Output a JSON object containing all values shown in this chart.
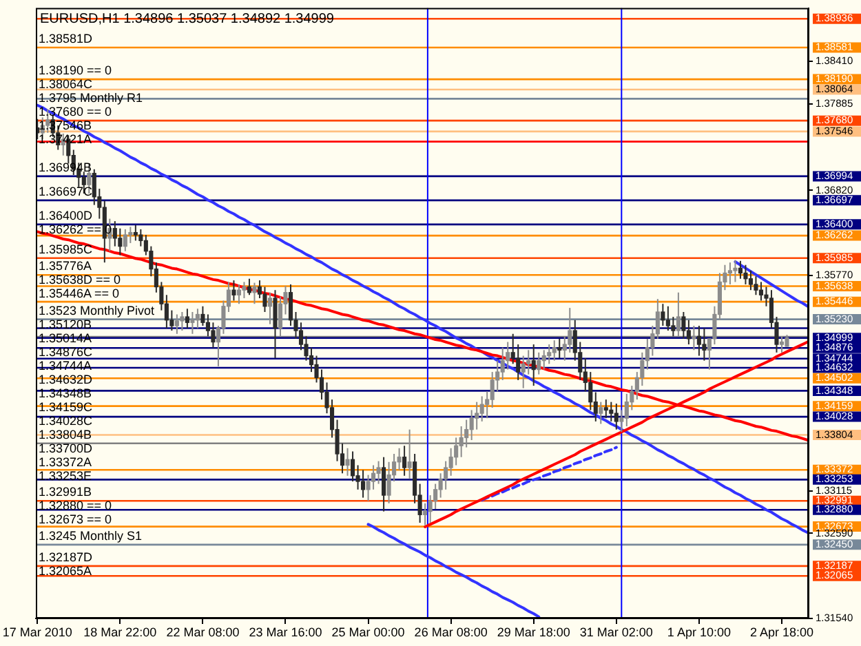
{
  "chart_data": {
    "type": "candlestick",
    "title": "EURUSD,H1 1.34896 1.35037 1.34892 1.34999",
    "categories": [
      "17 Mar 2010",
      null,
      null,
      null,
      null,
      null,
      null,
      null,
      null,
      null,
      null,
      null,
      null,
      null,
      null,
      null,
      "18 Mar 22:00",
      null,
      null,
      null,
      null,
      null,
      null,
      null,
      null,
      null,
      null,
      null,
      null,
      null,
      null,
      null,
      "22 Mar 08:00",
      null,
      null,
      null,
      null,
      null,
      null,
      null,
      null,
      null,
      null,
      null,
      null,
      null,
      null,
      null,
      "23 Mar 16:00",
      null,
      null,
      null,
      null,
      null,
      null,
      null,
      null,
      null,
      null,
      null,
      null,
      null,
      null,
      null,
      "25 Mar 00:00",
      null,
      null,
      null,
      null,
      null,
      null,
      null,
      null,
      null,
      null,
      null,
      null,
      null,
      null,
      null,
      "26 Mar 08:00",
      null,
      null,
      null,
      null,
      null,
      null,
      null,
      null,
      null,
      null,
      null,
      null,
      null,
      null,
      null,
      "29 Mar 18:00",
      null,
      null,
      null,
      null,
      null,
      null,
      null,
      null,
      null,
      null,
      null,
      null,
      null,
      null,
      null,
      "31 Mar 02:00",
      null,
      null,
      null,
      null,
      null,
      null,
      null,
      null,
      null,
      null,
      null,
      null,
      null,
      null,
      null,
      "1 Apr 10:00",
      null,
      null,
      null,
      null,
      null,
      null,
      null,
      null,
      null,
      null,
      null,
      null,
      null,
      null,
      null,
      "2 Apr 18:00",
      null,
      null,
      null,
      null,
      null
    ],
    "ohlc": [
      [
        1.3759,
        1.377,
        1.3745,
        1.3753
      ],
      [
        1.3753,
        1.3772,
        1.3745,
        1.3762
      ],
      [
        1.3762,
        1.3782,
        1.3753,
        1.3769
      ],
      [
        1.3769,
        1.3775,
        1.3748,
        1.3753
      ],
      [
        1.3753,
        1.3762,
        1.3732,
        1.3738
      ],
      [
        1.3738,
        1.3752,
        1.3725,
        1.3745
      ],
      [
        1.3745,
        1.375,
        1.3715,
        1.3725
      ],
      [
        1.3725,
        1.3732,
        1.3701,
        1.3708
      ],
      [
        1.3708,
        1.3716,
        1.3686,
        1.3698
      ],
      [
        1.3698,
        1.3705,
        1.3678,
        1.3689
      ],
      [
        1.3689,
        1.3715,
        1.3678,
        1.3703
      ],
      [
        1.3703,
        1.3708,
        1.3664,
        1.3674
      ],
      [
        1.3674,
        1.3684,
        1.3647,
        1.3661
      ],
      [
        1.3661,
        1.3669,
        1.3593,
        1.3623
      ],
      [
        1.3623,
        1.3647,
        1.3607,
        1.3635
      ],
      [
        1.3635,
        1.3644,
        1.3613,
        1.3623
      ],
      [
        1.3623,
        1.3635,
        1.3602,
        1.3613
      ],
      [
        1.3613,
        1.3634,
        1.3607,
        1.3627
      ],
      [
        1.3627,
        1.3637,
        1.3617,
        1.363
      ],
      [
        1.363,
        1.3639,
        1.362,
        1.3627
      ],
      [
        1.3627,
        1.3634,
        1.3613,
        1.362
      ],
      [
        1.362,
        1.3627,
        1.3602,
        1.3607
      ],
      [
        1.3607,
        1.3613,
        1.3576,
        1.3585
      ],
      [
        1.3585,
        1.3593,
        1.3556,
        1.3563
      ],
      [
        1.3563,
        1.3569,
        1.3534,
        1.3542
      ],
      [
        1.3542,
        1.3553,
        1.3512,
        1.3522
      ],
      [
        1.3522,
        1.3534,
        1.3509,
        1.3515
      ],
      [
        1.3515,
        1.3529,
        1.3505,
        1.3521
      ],
      [
        1.3521,
        1.3532,
        1.3509,
        1.3526
      ],
      [
        1.3526,
        1.3536,
        1.3512,
        1.3519
      ],
      [
        1.3519,
        1.3532,
        1.3505,
        1.3522
      ],
      [
        1.3522,
        1.3536,
        1.3512,
        1.3529
      ],
      [
        1.3529,
        1.3539,
        1.3515,
        1.3519
      ],
      [
        1.3519,
        1.3529,
        1.3502,
        1.3509
      ],
      [
        1.3509,
        1.3519,
        1.3488,
        1.3495
      ],
      [
        1.3495,
        1.3515,
        1.3465,
        1.3512
      ],
      [
        1.3512,
        1.3546,
        1.3505,
        1.3539
      ],
      [
        1.3539,
        1.3569,
        1.3532,
        1.3559
      ],
      [
        1.3559,
        1.3571,
        1.3546,
        1.3553
      ],
      [
        1.3553,
        1.3566,
        1.3542,
        1.3559
      ],
      [
        1.3559,
        1.3569,
        1.3549,
        1.3563
      ],
      [
        1.3563,
        1.3573,
        1.3553,
        1.3556
      ],
      [
        1.3556,
        1.3568,
        1.3542,
        1.3563
      ],
      [
        1.3563,
        1.3571,
        1.3549,
        1.3554
      ],
      [
        1.3554,
        1.3563,
        1.3532,
        1.3539
      ],
      [
        1.3539,
        1.3556,
        1.3517,
        1.3549
      ],
      [
        1.3549,
        1.3559,
        1.3475,
        1.3512
      ],
      [
        1.3512,
        1.3551,
        1.3502,
        1.3542
      ],
      [
        1.3542,
        1.3564,
        1.3529,
        1.3556
      ],
      [
        1.3556,
        1.3566,
        1.3515,
        1.3522
      ],
      [
        1.3522,
        1.3532,
        1.3499,
        1.3509
      ],
      [
        1.3509,
        1.3519,
        1.3485,
        1.3492
      ],
      [
        1.3492,
        1.3502,
        1.3472,
        1.3478
      ],
      [
        1.3478,
        1.3488,
        1.3458,
        1.3467
      ],
      [
        1.3467,
        1.3478,
        1.3445,
        1.3451
      ],
      [
        1.3451,
        1.3461,
        1.3424,
        1.3433
      ],
      [
        1.3433,
        1.3445,
        1.3407,
        1.3414
      ],
      [
        1.3414,
        1.3424,
        1.3377,
        1.3387
      ],
      [
        1.3387,
        1.3399,
        1.3348,
        1.3357
      ],
      [
        1.3357,
        1.337,
        1.3333,
        1.3343
      ],
      [
        1.3343,
        1.3364,
        1.333,
        1.335
      ],
      [
        1.335,
        1.336,
        1.3323,
        1.333
      ],
      [
        1.333,
        1.3343,
        1.3313,
        1.3323
      ],
      [
        1.3323,
        1.3337,
        1.3303,
        1.3313
      ],
      [
        1.3313,
        1.3331,
        1.3299,
        1.3323
      ],
      [
        1.3323,
        1.3343,
        1.3313,
        1.3333
      ],
      [
        1.3333,
        1.3348,
        1.332,
        1.334
      ],
      [
        1.334,
        1.3353,
        1.3286,
        1.3306
      ],
      [
        1.3306,
        1.3347,
        1.3296,
        1.3331
      ],
      [
        1.3331,
        1.3357,
        1.3323,
        1.3347
      ],
      [
        1.3347,
        1.3364,
        1.3337,
        1.3353
      ],
      [
        1.3353,
        1.3367,
        1.333,
        1.334
      ],
      [
        1.334,
        1.3387,
        1.3326,
        1.3347
      ],
      [
        1.3347,
        1.3357,
        1.3296,
        1.3306
      ],
      [
        1.3306,
        1.332,
        1.3272,
        1.3282
      ],
      [
        1.3282,
        1.3296,
        1.3269,
        1.3286
      ],
      [
        1.3286,
        1.3306,
        1.3272,
        1.3299
      ],
      [
        1.3299,
        1.332,
        1.3289,
        1.3313
      ],
      [
        1.3313,
        1.3333,
        1.3303,
        1.3326
      ],
      [
        1.3326,
        1.3348,
        1.3313,
        1.334
      ],
      [
        1.334,
        1.3364,
        1.333,
        1.3353
      ],
      [
        1.3353,
        1.3377,
        1.3343,
        1.3367
      ],
      [
        1.3367,
        1.3391,
        1.3353,
        1.3377
      ],
      [
        1.3377,
        1.3399,
        1.3365,
        1.3387
      ],
      [
        1.3387,
        1.3411,
        1.3374,
        1.3401
      ],
      [
        1.3401,
        1.3421,
        1.3387,
        1.3407
      ],
      [
        1.3407,
        1.3428,
        1.3397,
        1.3418
      ],
      [
        1.3418,
        1.3434,
        1.3401,
        1.3424
      ],
      [
        1.3424,
        1.3458,
        1.3414,
        1.3448
      ],
      [
        1.3448,
        1.3472,
        1.3434,
        1.3458
      ],
      [
        1.3458,
        1.3488,
        1.3448,
        1.3472
      ],
      [
        1.3472,
        1.3495,
        1.3461,
        1.3482
      ],
      [
        1.3482,
        1.3505,
        1.3468,
        1.3475
      ],
      [
        1.3475,
        1.3492,
        1.3448,
        1.3458
      ],
      [
        1.3458,
        1.3478,
        1.3438,
        1.3468
      ],
      [
        1.3468,
        1.3485,
        1.3455,
        1.3472
      ],
      [
        1.3472,
        1.3492,
        1.3441,
        1.3461
      ],
      [
        1.3461,
        1.3482,
        1.3455,
        1.3472
      ],
      [
        1.3472,
        1.3485,
        1.3461,
        1.3478
      ],
      [
        1.3478,
        1.3492,
        1.3468,
        1.3482
      ],
      [
        1.3482,
        1.3497,
        1.3472,
        1.3488
      ],
      [
        1.3488,
        1.3499,
        1.3475,
        1.3485
      ],
      [
        1.3485,
        1.3502,
        1.3472,
        1.3492
      ],
      [
        1.3492,
        1.3537,
        1.3482,
        1.3509
      ],
      [
        1.3509,
        1.3522,
        1.3472,
        1.3482
      ],
      [
        1.3482,
        1.3495,
        1.3448,
        1.3458
      ],
      [
        1.3458,
        1.3475,
        1.3434,
        1.3445
      ],
      [
        1.3445,
        1.3458,
        1.3411,
        1.3421
      ],
      [
        1.3421,
        1.3433,
        1.3397,
        1.3407
      ],
      [
        1.3407,
        1.3421,
        1.3394,
        1.3414
      ],
      [
        1.3414,
        1.3424,
        1.3401,
        1.3411
      ],
      [
        1.3411,
        1.3421,
        1.3397,
        1.3407
      ],
      [
        1.3407,
        1.3419,
        1.3387,
        1.3397
      ],
      [
        1.3397,
        1.3411,
        1.3384,
        1.3401
      ],
      [
        1.3401,
        1.3431,
        1.3391,
        1.3421
      ],
      [
        1.3421,
        1.3441,
        1.3411,
        1.3434
      ],
      [
        1.3434,
        1.3458,
        1.3424,
        1.3451
      ],
      [
        1.3451,
        1.3482,
        1.3441,
        1.3472
      ],
      [
        1.3472,
        1.3499,
        1.3461,
        1.3488
      ],
      [
        1.3488,
        1.3515,
        1.3478,
        1.3505
      ],
      [
        1.3505,
        1.3548,
        1.3499,
        1.3532
      ],
      [
        1.3532,
        1.3542,
        1.3515,
        1.3522
      ],
      [
        1.3522,
        1.3539,
        1.3509,
        1.3515
      ],
      [
        1.3515,
        1.3526,
        1.3502,
        1.3509
      ],
      [
        1.3509,
        1.3556,
        1.3502,
        1.3526
      ],
      [
        1.3526,
        1.3532,
        1.3499,
        1.3509
      ],
      [
        1.3509,
        1.3522,
        1.3492,
        1.3499
      ],
      [
        1.3499,
        1.3515,
        1.3485,
        1.3502
      ],
      [
        1.3502,
        1.3515,
        1.3478,
        1.3492
      ],
      [
        1.3492,
        1.3512,
        1.3472,
        1.3485
      ],
      [
        1.3485,
        1.3499,
        1.3461,
        1.3499
      ],
      [
        1.3499,
        1.3539,
        1.3492,
        1.3529
      ],
      [
        1.3529,
        1.358,
        1.3522,
        1.3569
      ],
      [
        1.3569,
        1.359,
        1.3559,
        1.358
      ],
      [
        1.358,
        1.3593,
        1.3566,
        1.3583
      ],
      [
        1.3583,
        1.3596,
        1.3569,
        1.3586
      ],
      [
        1.3586,
        1.3595,
        1.3573,
        1.358
      ],
      [
        1.358,
        1.359,
        1.3566,
        1.3573
      ],
      [
        1.3573,
        1.3583,
        1.3559,
        1.3566
      ],
      [
        1.3566,
        1.3576,
        1.3553,
        1.3559
      ],
      [
        1.3559,
        1.3569,
        1.3546,
        1.3553
      ],
      [
        1.3553,
        1.3563,
        1.3539,
        1.3549
      ],
      [
        1.3549,
        1.3559,
        1.3512,
        1.3519
      ],
      [
        1.3519,
        1.3526,
        1.3482,
        1.3492
      ],
      [
        1.3492,
        1.3502,
        1.3482,
        1.3495
      ],
      [
        1.34896,
        1.35037,
        1.34892,
        1.34999
      ],
      null,
      null,
      null,
      null
    ],
    "colors": [
      "#2b2b2b",
      "#8c8c8c",
      "#8c8c8c",
      "#2b2b2b",
      "#2b2b2b",
      "#8c8c8c",
      "#2b2b2b",
      "#2b2b2b",
      "#2b2b2b",
      "#2b2b2b",
      "#8c8c8c",
      "#2b2b2b",
      "#2b2b2b",
      "#2b2b2b",
      "#8c8c8c",
      "#2b2b2b",
      "#2b2b2b",
      "#8c8c8c",
      "#8c8c8c",
      "#2b2b2b",
      "#2b2b2b",
      "#2b2b2b",
      "#2b2b2b",
      "#2b2b2b",
      "#2b2b2b",
      "#2b2b2b",
      "#2b2b2b",
      "#8c8c8c",
      "#8c8c8c",
      "#2b2b2b",
      "#8c8c8c",
      "#8c8c8c",
      "#2b2b2b",
      "#2b2b2b",
      "#2b2b2b",
      "#8c8c8c",
      "#8c8c8c",
      "#8c8c8c",
      "#2b2b2b",
      "#8c8c8c",
      "#8c8c8c",
      "#2b2b2b",
      "#8c8c8c",
      "#2b2b2b",
      "#2b2b2b",
      "#8c8c8c",
      "#2b2b2b",
      "#8c8c8c",
      "#8c8c8c",
      "#2b2b2b",
      "#2b2b2b",
      "#2b2b2b",
      "#2b2b2b",
      "#2b2b2b",
      "#2b2b2b",
      "#2b2b2b",
      "#2b2b2b",
      "#2b2b2b",
      "#2b2b2b",
      "#2b2b2b",
      "#8c8c8c",
      "#2b2b2b",
      "#2b2b2b",
      "#2b2b2b",
      "#8c8c8c",
      "#8c8c8c",
      "#8c8c8c",
      "#2b2b2b",
      "#8c8c8c",
      "#8c8c8c",
      "#8c8c8c",
      "#2b2b2b",
      "#8c8c8c",
      "#2b2b2b",
      "#2b2b2b",
      "#8c8c8c",
      "#8c8c8c",
      "#8c8c8c",
      "#8c8c8c",
      "#8c8c8c",
      "#8c8c8c",
      "#8c8c8c",
      "#8c8c8c",
      "#8c8c8c",
      "#8c8c8c",
      "#8c8c8c",
      "#8c8c8c",
      "#8c8c8c",
      "#8c8c8c",
      "#8c8c8c",
      "#8c8c8c",
      "#8c8c8c",
      "#2b2b2b",
      "#2b2b2b",
      "#8c8c8c",
      "#8c8c8c",
      "#2b2b2b",
      "#8c8c8c",
      "#8c8c8c",
      "#8c8c8c",
      "#8c8c8c",
      "#2b2b2b",
      "#8c8c8c",
      "#8c8c8c",
      "#2b2b2b",
      "#2b2b2b",
      "#2b2b2b",
      "#2b2b2b",
      "#2b2b2b",
      "#8c8c8c",
      "#2b2b2b",
      "#2b2b2b",
      "#2b2b2b",
      "#8c8c8c",
      "#8c8c8c",
      "#8c8c8c",
      "#8c8c8c",
      "#8c8c8c",
      "#8c8c8c",
      "#8c8c8c",
      "#8c8c8c",
      "#2b2b2b",
      "#2b2b2b",
      "#2b2b2b",
      "#8c8c8c",
      "#2b2b2b",
      "#2b2b2b",
      "#8c8c8c",
      "#2b2b2b",
      "#2b2b2b",
      "#8c8c8c",
      "#8c8c8c",
      "#8c8c8c",
      "#8c8c8c",
      "#8c8c8c",
      "#8c8c8c",
      "#2b2b2b",
      "#2b2b2b",
      "#2b2b2b",
      "#2b2b2b",
      "#2b2b2b",
      "#2b2b2b",
      "#2b2b2b",
      "#2b2b2b",
      "#8c8c8c",
      "#8c8c8c",
      null,
      null,
      null,
      null
    ],
    "series": [
      {
        "type": "line",
        "color": "#ff0000",
        "values": [
          1.3631,
          1.3629,
          1.3628,
          1.3626,
          1.3624,
          1.3622,
          1.3621,
          1.3619,
          1.3617,
          1.3616,
          1.3614,
          1.3612,
          1.361,
          1.3609,
          1.3607,
          1.3605,
          1.3604,
          1.3602,
          1.36,
          1.3598,
          1.3597,
          1.3595,
          1.3593,
          1.3591,
          1.359,
          1.3588,
          1.3586,
          1.3585,
          1.3583,
          1.3581,
          1.3579,
          1.3578,
          1.3576,
          1.3574,
          1.3572,
          1.3571,
          1.3569,
          1.3567,
          1.3566,
          1.3564,
          1.3562,
          1.356,
          1.3559,
          1.3557,
          1.3555,
          1.3554,
          1.3552,
          1.355,
          1.3548,
          1.3547,
          1.3545,
          1.3543,
          1.3541,
          1.354,
          1.3538,
          1.3536,
          1.3535,
          1.3533,
          1.3531,
          1.3529,
          1.3528,
          1.3526,
          1.3524,
          1.3522,
          1.3521,
          1.3519,
          1.3517,
          1.3516,
          1.3514,
          1.3512,
          1.351,
          1.3509,
          1.3507,
          1.3505,
          1.3504,
          1.3502,
          1.35,
          1.3498,
          1.3497,
          1.3495,
          1.3493,
          1.3491,
          1.349,
          1.3488,
          1.3486,
          1.3485,
          1.3483,
          1.3481,
          1.3479,
          1.3478,
          1.3476,
          1.3474,
          1.3472,
          1.3471,
          1.3469,
          1.3467,
          1.3466,
          1.3464,
          1.3462,
          1.346,
          1.3459,
          1.3457,
          1.3455,
          1.3454,
          1.3452,
          1.345,
          1.3448,
          1.3447,
          1.3445,
          1.3443,
          1.3441,
          1.344,
          1.3438,
          1.3436,
          1.3435,
          1.3433,
          1.3431,
          1.3429,
          1.3428,
          1.3426,
          1.3424,
          1.3422,
          1.3421,
          1.3419,
          1.3417,
          1.3416,
          1.3414,
          1.3412,
          1.341,
          1.3409,
          1.3407,
          1.3405,
          1.3404,
          1.3402,
          1.34,
          1.3398,
          1.3397,
          1.3395,
          1.3393,
          1.3391,
          1.339,
          1.3388,
          1.3386,
          1.3385,
          1.3383,
          1.3381,
          1.3379,
          1.3378,
          1.3376,
          1.3374
        ]
      },
      {
        "type": "line",
        "color": "#ff0000",
        "values": [
          null,
          null,
          null,
          null,
          null,
          null,
          null,
          null,
          null,
          null,
          null,
          null,
          null,
          null,
          null,
          null,
          null,
          null,
          null,
          null,
          null,
          null,
          null,
          null,
          null,
          null,
          null,
          null,
          null,
          null,
          null,
          null,
          null,
          null,
          null,
          null,
          null,
          null,
          null,
          null,
          null,
          null,
          null,
          null,
          null,
          null,
          null,
          null,
          null,
          null,
          null,
          null,
          null,
          null,
          null,
          null,
          null,
          null,
          null,
          null,
          null,
          null,
          null,
          null,
          null,
          null,
          null,
          null,
          null,
          null,
          null,
          null,
          null,
          null,
          null,
          1.3267,
          1.327,
          1.3273,
          1.3276,
          1.3279,
          1.3282,
          1.3286,
          1.3289,
          1.3292,
          1.3295,
          1.3298,
          1.3301,
          1.3304,
          1.3307,
          1.331,
          1.3313,
          1.3316,
          1.3319,
          1.3323,
          1.3326,
          1.3329,
          1.3332,
          1.3335,
          1.3338,
          1.3341,
          1.3344,
          1.3347,
          1.335,
          1.3353,
          1.3356,
          1.336,
          1.3363,
          1.3366,
          1.3369,
          1.3372,
          1.3375,
          1.3378,
          1.3381,
          1.3384,
          1.3387,
          1.339,
          1.3393,
          1.3396,
          1.34,
          1.3403,
          1.3406,
          1.3409,
          1.3412,
          1.3415,
          1.3418,
          1.3421,
          1.3424,
          1.3427,
          1.343,
          1.3433,
          1.3437,
          1.344,
          1.3443,
          1.3446,
          1.3449,
          1.3452,
          1.3455,
          1.3458,
          1.3461,
          1.3464,
          1.3467,
          1.347,
          1.3473,
          1.3477,
          1.348,
          1.3483,
          1.3486,
          1.3489,
          1.3492,
          1.3495
        ]
      },
      {
        "type": "line",
        "color": "#3333ff",
        "values": [
          1.3787,
          1.3784,
          1.378,
          1.3777,
          1.3773,
          1.377,
          1.3766,
          1.3762,
          1.3759,
          1.3755,
          1.3752,
          1.3748,
          1.3745,
          1.3741,
          1.3738,
          1.3734,
          1.3731,
          1.3727,
          1.3723,
          1.372,
          1.3716,
          1.3713,
          1.3709,
          1.3706,
          1.3702,
          1.3699,
          1.3695,
          1.3692,
          1.3688,
          1.3685,
          1.3681,
          1.3677,
          1.3674,
          1.367,
          1.3667,
          1.3663,
          1.366,
          1.3656,
          1.3653,
          1.3649,
          1.3646,
          1.3642,
          1.3639,
          1.3635,
          1.3631,
          1.3628,
          1.3624,
          1.3621,
          1.3617,
          1.3614,
          1.361,
          1.3607,
          1.3603,
          1.36,
          1.3596,
          1.3593,
          1.3589,
          1.3585,
          1.3582,
          1.3578,
          1.3575,
          1.3571,
          1.3568,
          1.3564,
          1.3561,
          1.3557,
          1.3554,
          1.355,
          1.3547,
          1.3543,
          1.3539,
          1.3536,
          1.3532,
          1.3529,
          1.3525,
          1.3522,
          1.3518,
          1.3515,
          1.3511,
          1.3508,
          1.3504,
          1.35,
          1.3497,
          1.3493,
          1.349,
          1.3486,
          1.3483,
          1.3479,
          1.3476,
          1.3472,
          1.3469,
          1.3465,
          1.3462,
          1.3458,
          1.3454,
          1.3451,
          1.3447,
          1.3444,
          1.344,
          1.3437,
          1.3433,
          1.343,
          1.3426,
          1.3423,
          1.3419,
          1.3416,
          1.3412,
          1.3408,
          1.3405,
          1.3401,
          1.3398,
          1.3394,
          1.3391,
          1.3387,
          1.3384,
          1.338,
          1.3377,
          1.3373,
          1.337,
          1.3366,
          1.3362,
          1.3359,
          1.3355,
          1.3352,
          1.3348,
          1.3345,
          1.3341,
          1.3338,
          1.3334,
          1.3331,
          1.3327,
          1.3324,
          1.332,
          1.3316,
          1.3313,
          1.3309,
          1.3306,
          1.3302,
          1.3299,
          1.3295,
          1.3292,
          1.3288,
          1.3285,
          1.3281,
          1.3277,
          1.3274,
          1.327,
          1.3267,
          1.3263,
          1.326
        ]
      },
      {
        "type": "line",
        "color": "#3333ff",
        "values": [
          null,
          null,
          null,
          null,
          null,
          null,
          null,
          null,
          null,
          null,
          null,
          null,
          null,
          null,
          null,
          null,
          null,
          null,
          null,
          null,
          null,
          null,
          null,
          null,
          null,
          null,
          null,
          null,
          null,
          null,
          null,
          null,
          null,
          null,
          null,
          null,
          null,
          null,
          null,
          null,
          null,
          null,
          null,
          null,
          null,
          null,
          null,
          null,
          null,
          null,
          null,
          null,
          null,
          null,
          null,
          null,
          null,
          null,
          null,
          null,
          null,
          null,
          null,
          null,
          1.327,
          1.3267,
          1.3263,
          1.326,
          1.3256,
          1.3253,
          1.3249,
          1.3246,
          1.3242,
          1.3239,
          1.3236,
          1.3232,
          1.3229,
          1.3225,
          1.3222,
          1.3218,
          1.3215,
          1.3211,
          1.3208,
          1.3205,
          1.3201,
          1.3198,
          1.3194,
          1.3191,
          1.3187,
          1.3184,
          1.318,
          1.3177,
          1.3174,
          1.317,
          1.3167,
          1.3163,
          1.316,
          1.3156,
          null,
          null,
          null,
          null,
          null,
          null,
          null,
          null,
          null,
          null,
          null,
          null,
          null,
          null,
          null,
          null,
          null,
          null,
          null,
          null,
          null,
          null,
          null,
          null,
          null,
          null,
          null,
          null,
          null,
          null,
          null,
          null,
          null,
          null,
          null,
          null,
          null,
          null,
          null,
          null,
          null,
          null,
          null,
          null,
          null,
          null,
          null,
          null,
          null,
          null,
          null,
          null
        ]
      },
      {
        "type": "line",
        "color": "#3333ff",
        "line_style": "dashed",
        "values": [
          null,
          null,
          null,
          null,
          null,
          null,
          null,
          null,
          null,
          null,
          null,
          null,
          null,
          null,
          null,
          null,
          null,
          null,
          null,
          null,
          null,
          null,
          null,
          null,
          null,
          null,
          null,
          null,
          null,
          null,
          null,
          null,
          null,
          null,
          null,
          null,
          null,
          null,
          null,
          null,
          null,
          null,
          null,
          null,
          null,
          null,
          null,
          null,
          null,
          null,
          null,
          null,
          null,
          null,
          null,
          null,
          null,
          null,
          null,
          null,
          null,
          null,
          null,
          null,
          null,
          null,
          null,
          null,
          null,
          null,
          null,
          null,
          null,
          null,
          null,
          null,
          null,
          null,
          null,
          null,
          null,
          null,
          null,
          null,
          null,
          null,
          1.33,
          1.3303,
          1.3305,
          1.3308,
          1.331,
          1.3313,
          1.3315,
          1.3318,
          1.332,
          1.3323,
          1.3325,
          1.3327,
          1.333,
          1.3332,
          1.3335,
          1.3337,
          1.334,
          1.3342,
          1.3345,
          1.3347,
          1.335,
          1.3352,
          1.3355,
          1.3357,
          1.336,
          1.3362,
          1.3365,
          null,
          null,
          null,
          null,
          null,
          null,
          null,
          null,
          null,
          null,
          null,
          null,
          null,
          null,
          null,
          null,
          null,
          null,
          null,
          null,
          null,
          null,
          null,
          null,
          null,
          null,
          null,
          null,
          null,
          null,
          null,
          null,
          null,
          null,
          null,
          null,
          null
        ]
      },
      {
        "type": "line",
        "color": "#3333ff",
        "values": [
          null,
          null,
          null,
          null,
          null,
          null,
          null,
          null,
          null,
          null,
          null,
          null,
          null,
          null,
          null,
          null,
          null,
          null,
          null,
          null,
          null,
          null,
          null,
          null,
          null,
          null,
          null,
          null,
          null,
          null,
          null,
          null,
          null,
          null,
          null,
          null,
          null,
          null,
          null,
          null,
          null,
          null,
          null,
          null,
          null,
          null,
          null,
          null,
          null,
          null,
          null,
          null,
          null,
          null,
          null,
          null,
          null,
          null,
          null,
          null,
          null,
          null,
          null,
          null,
          null,
          null,
          null,
          null,
          null,
          null,
          null,
          null,
          null,
          null,
          null,
          null,
          null,
          null,
          null,
          null,
          null,
          null,
          null,
          null,
          null,
          null,
          null,
          null,
          null,
          null,
          null,
          null,
          null,
          null,
          null,
          null,
          null,
          null,
          null,
          null,
          null,
          null,
          null,
          null,
          null,
          null,
          null,
          null,
          null,
          null,
          null,
          null,
          null,
          null,
          null,
          null,
          null,
          null,
          null,
          null,
          null,
          null,
          null,
          null,
          null,
          null,
          null,
          null,
          null,
          null,
          null,
          null,
          null,
          null,
          null,
          1.3594,
          1.359,
          1.3586,
          1.3582,
          1.3578,
          1.3574,
          1.357,
          1.3566,
          1.3562,
          1.3558,
          1.3554,
          1.355,
          1.3546,
          1.3543,
          1.3539
        ]
      }
    ],
    "ylim": [
      1.3154,
      1.3907
    ],
    "yticks": [
      1.38936,
      1.38581,
      {
        "value": 1.3841,
        "label": "1.38410"
      },
      {
        "value": 1.3819,
        "label": "1.38190"
      },
      1.38064,
      1.37885,
      {
        "value": 1.3768,
        "label": "1.37680"
      },
      1.37546,
      1.36994,
      {
        "value": 1.3682,
        "label": "1.36820"
      },
      1.36697,
      {
        "value": 1.364,
        "label": "1.36400"
      },
      1.36262,
      1.35985,
      {
        "value": 1.3577,
        "label": "1.35770"
      },
      1.35638,
      1.35446,
      {
        "value": 1.3523,
        "label": "1.35230"
      },
      1.34999,
      1.34876,
      1.34744,
      1.34632,
      1.34502,
      1.34348,
      1.34159,
      1.34028,
      1.33804,
      1.33372,
      1.33253,
      1.33115,
      1.32991,
      {
        "value": 1.3288,
        "label": "1.32880"
      },
      1.32673,
      {
        "value": 1.3259,
        "label": "1.32590"
      },
      {
        "value": 1.3245,
        "label": "1.32450"
      },
      1.32187,
      1.32065,
      {
        "value": 1.3154,
        "label": "1.31540"
      }
    ],
    "ref_lines": [
      {
        "axis": "y",
        "value": 1.38936,
        "color": "#ff4500"
      },
      {
        "axis": "y",
        "value": 1.38581,
        "label": "1.38581D",
        "color": "#ff8c00"
      },
      {
        "axis": "y",
        "value": 1.3819,
        "label": "1.38190 == 0",
        "color": "#ff8c00"
      },
      {
        "axis": "y",
        "value": 1.38064,
        "label": "1.38064C",
        "color": "#ffbf80"
      },
      {
        "axis": "y",
        "value": 1.3795,
        "label": "1.3795 Monthly R1",
        "color": "#778899"
      },
      {
        "axis": "y",
        "value": 1.3768,
        "label": "1.37680 == 0",
        "color": "#ff4500"
      },
      {
        "axis": "y",
        "value": 1.37546,
        "label": "1.37546B",
        "color": "#ffbf80"
      },
      {
        "axis": "y",
        "value": 1.37421,
        "label": "1.37421A",
        "color": "#ff0000"
      },
      {
        "axis": "y",
        "value": 1.36994,
        "label": "1.36994B",
        "color": "#000080"
      },
      {
        "axis": "y",
        "value": 1.36697,
        "label": "1.36697C",
        "color": "#000080"
      },
      {
        "axis": "y",
        "value": 1.364,
        "label": "1.36400D",
        "color": "#000080"
      },
      {
        "axis": "y",
        "value": 1.36262,
        "label": "1.36262 == 0",
        "color": "#ff8c00"
      },
      {
        "axis": "y",
        "value": 1.35985,
        "label": "1.35985C",
        "color": "#ff4500"
      },
      {
        "axis": "y",
        "value": 1.35776,
        "label": "1.35776A",
        "color": "#ff8c00"
      },
      {
        "axis": "y",
        "value": 1.35638,
        "label": "1.35638D == 0",
        "color": "#ff8c00"
      },
      {
        "axis": "y",
        "value": 1.35446,
        "label": "1.35446A == 0",
        "color": "#ff8c00"
      },
      {
        "axis": "y",
        "value": 1.3523,
        "label": "1.3523 Monthly Pivot",
        "color": "#778899"
      },
      {
        "axis": "y",
        "value": 1.3512,
        "label": "1.35120B",
        "color": "#000080"
      },
      {
        "axis": "y",
        "value": 1.35014,
        "label": "1.35014A",
        "color": "#808080"
      },
      {
        "axis": "y",
        "value": 1.34999,
        "color": "#000080"
      },
      {
        "axis": "y",
        "value": 1.34876,
        "label": "1.34876C",
        "color": "#000080"
      },
      {
        "axis": "y",
        "value": 1.34744,
        "label": "1.34744A",
        "color": "#000080"
      },
      {
        "axis": "y",
        "value": 1.34632,
        "label": "1.34632D",
        "color": "#000080"
      },
      {
        "axis": "y",
        "value": 1.34502,
        "color": "#ff8c00"
      },
      {
        "axis": "y",
        "value": 1.34348,
        "label": "1.34348B",
        "color": "#000080"
      },
      {
        "axis": "y",
        "value": 1.34159,
        "label": "1.34159C",
        "color": "#ff8c00"
      },
      {
        "axis": "y",
        "value": 1.34028,
        "label": "1.34028C",
        "color": "#000080"
      },
      {
        "axis": "y",
        "value": 1.33804,
        "label": "1.33804B",
        "color": "#ffbf80"
      },
      {
        "axis": "y",
        "value": 1.337,
        "label": "1.33700D",
        "color": "#808080"
      },
      {
        "axis": "y",
        "value": 1.33372,
        "label": "1.33372A",
        "color": "#ff8c00"
      },
      {
        "axis": "y",
        "value": 1.33253,
        "label": "1.33253E",
        "color": "#000080"
      },
      {
        "axis": "y",
        "value": 1.32991,
        "label": "1.32991B",
        "color": "#ff4500"
      },
      {
        "axis": "y",
        "value": 1.3288,
        "label": "1.32880 == 0",
        "color": "#000080"
      },
      {
        "axis": "y",
        "value": 1.32673,
        "label": "1.32673 == 0",
        "color": "#ff8c00"
      },
      {
        "axis": "y",
        "value": 1.3245,
        "label": "1.3245 Monthly S1",
        "color": "#778899"
      },
      {
        "axis": "y",
        "value": 1.32187,
        "label": "1.32187D",
        "color": "#ff4500"
      },
      {
        "axis": "y",
        "value": 1.32065,
        "label": "1.32065A",
        "color": "#ff4500"
      }
    ]
  }
}
